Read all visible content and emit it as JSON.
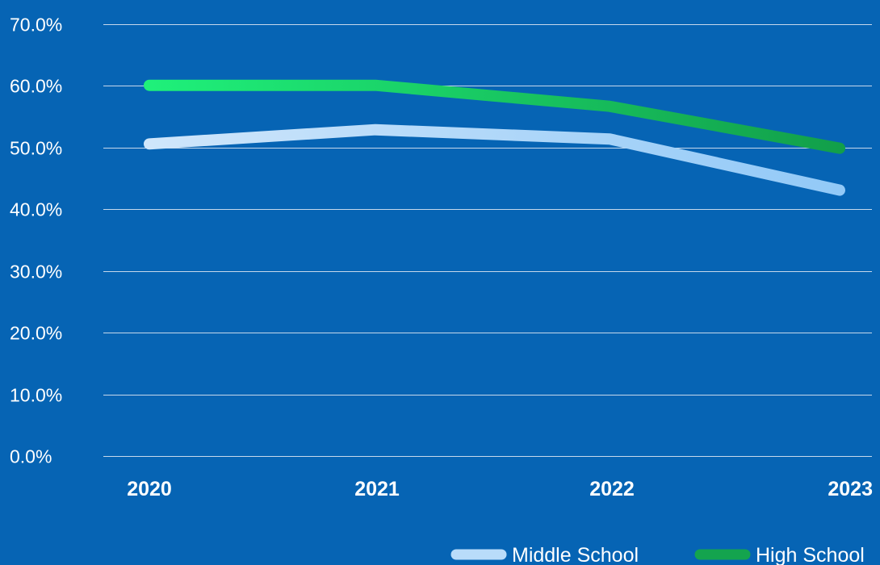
{
  "colors": {
    "background": "#0664b4",
    "gridline": "#c6d8ec",
    "text": "#ffffff"
  },
  "chart_data": {
    "type": "line",
    "categories": [
      "2020",
      "2021",
      "2022",
      "2023"
    ],
    "ylim": [
      0,
      0.7
    ],
    "yticks": [
      0.7,
      0.6,
      0.5,
      0.4,
      0.3,
      0.2,
      0.1,
      0.0
    ],
    "ytick_labels": [
      "70.0%",
      "60.0%",
      "50.0%",
      "40.0%",
      "30.0%",
      "20.0%",
      "10.0%",
      "0.0%"
    ],
    "grid": true,
    "legend_position": "bottom-right",
    "series": [
      {
        "name": "Middle School",
        "values": [
          0.506,
          0.529,
          0.514,
          0.431
        ],
        "color_start": "#cfe6fb",
        "color_end": "#92c9f7",
        "legend_color": "#b9dcfa"
      },
      {
        "name": "High School",
        "values": [
          0.601,
          0.601,
          0.567,
          0.499
        ],
        "color_start": "#1ff07a",
        "color_end": "#129f4a",
        "legend_color": "#14a44e"
      }
    ]
  }
}
